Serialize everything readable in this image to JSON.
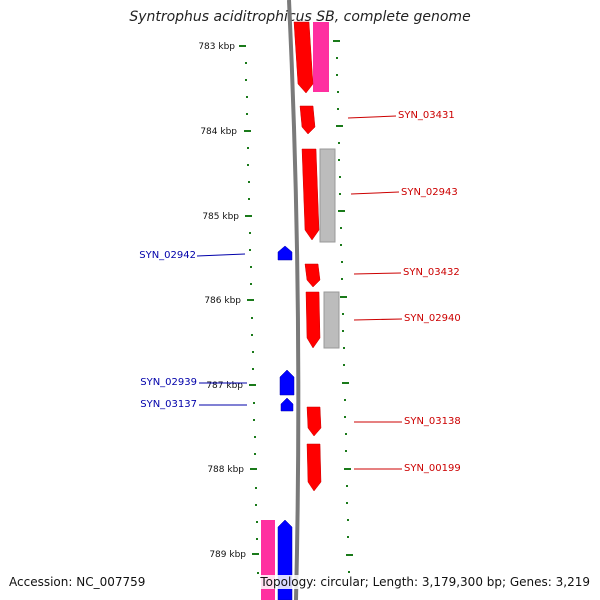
{
  "title": "Syntrophus aciditrophicus SB, complete genome",
  "footer": {
    "accession": "Accession: NC_007759",
    "summary": "Topology: circular; Length: 3,179,300 bp; Genes: 3,219"
  },
  "colors": {
    "forward_gene": "#ff0000",
    "reverse_gene": "#0000ff",
    "pink_feature": "#ff2fa0",
    "gray_feature": "#bbbbbb",
    "scale_ticks": "#1a7a1a",
    "backbone": "#808080",
    "forward_label": "#cc0000",
    "reverse_label": "#0000aa"
  },
  "scale": {
    "ticks": [
      "783 kbp",
      "784 kbp",
      "785 kbp",
      "786 kbp",
      "787 kbp",
      "788 kbp",
      "789 kbp"
    ]
  },
  "forward_labels": [
    "SYN_03431",
    "SYN_02943",
    "SYN_03432",
    "SYN_02940",
    "SYN_03138",
    "SYN_00199"
  ],
  "reverse_labels": [
    "SYN_02942",
    "SYN_02939",
    "SYN_03137"
  ]
}
